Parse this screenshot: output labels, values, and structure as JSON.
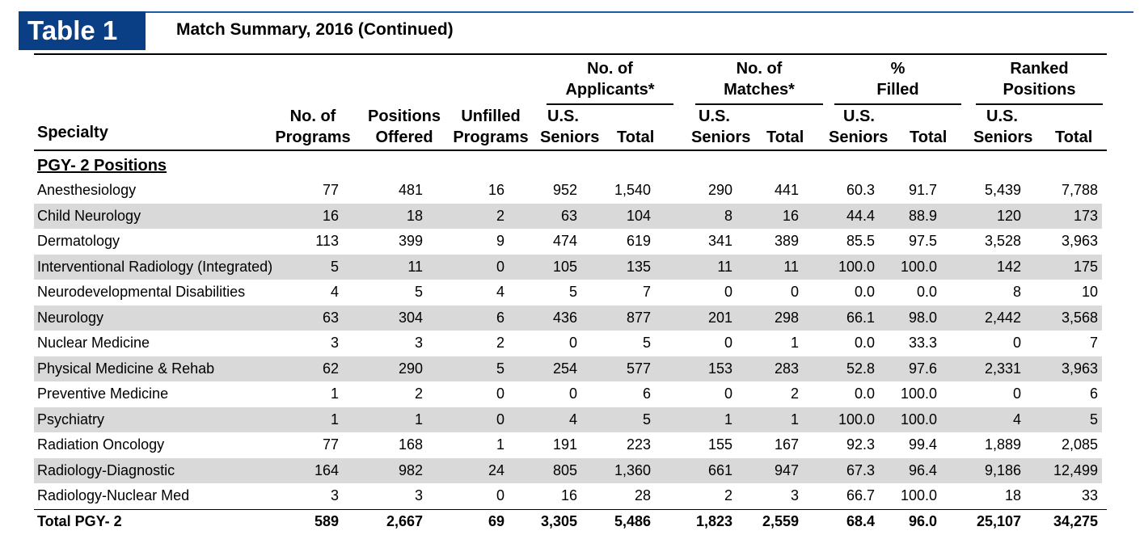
{
  "badge": "Table 1",
  "title": "Match Summary, 2016 (Continued)",
  "headers": {
    "specialty": "Specialty",
    "programs": [
      "No. of",
      "Programs"
    ],
    "positions": [
      "Positions",
      "Offered"
    ],
    "unfilled": [
      "Unfilled",
      "Programs"
    ],
    "applicants_group": [
      "No. of",
      "Applicants*"
    ],
    "matches_group": [
      "No. of",
      "Matches*"
    ],
    "filled_group": [
      "%",
      "Filled"
    ],
    "ranked_group": [
      "Ranked",
      "Positions"
    ],
    "us_seniors": [
      "U.S.",
      "Seniors"
    ],
    "total": "Total"
  },
  "section": "PGY- 2 Positions",
  "rows": [
    {
      "name": "Anesthesiology",
      "v": [
        "77",
        "481",
        "16",
        "952",
        "1,540",
        "290",
        "441",
        "60.3",
        "91.7",
        "5,439",
        "7,788"
      ]
    },
    {
      "name": "Child Neurology",
      "v": [
        "16",
        "18",
        "2",
        "63",
        "104",
        "8",
        "16",
        "44.4",
        "88.9",
        "120",
        "173"
      ]
    },
    {
      "name": "Dermatology",
      "v": [
        "113",
        "399",
        "9",
        "474",
        "619",
        "341",
        "389",
        "85.5",
        "97.5",
        "3,528",
        "3,963"
      ]
    },
    {
      "name": "Interventional Radiology (Integrated)",
      "v": [
        "5",
        "11",
        "0",
        "105",
        "135",
        "11",
        "11",
        "100.0",
        "100.0",
        "142",
        "175"
      ]
    },
    {
      "name": "Neurodevelopmental Disabilities",
      "v": [
        "4",
        "5",
        "4",
        "5",
        "7",
        "0",
        "0",
        "0.0",
        "0.0",
        "8",
        "10"
      ]
    },
    {
      "name": "Neurology",
      "v": [
        "63",
        "304",
        "6",
        "436",
        "877",
        "201",
        "298",
        "66.1",
        "98.0",
        "2,442",
        "3,568"
      ]
    },
    {
      "name": "Nuclear Medicine",
      "v": [
        "3",
        "3",
        "2",
        "0",
        "5",
        "0",
        "1",
        "0.0",
        "33.3",
        "0",
        "7"
      ]
    },
    {
      "name": "Physical Medicine & Rehab",
      "v": [
        "62",
        "290",
        "5",
        "254",
        "577",
        "153",
        "283",
        "52.8",
        "97.6",
        "2,331",
        "3,963"
      ]
    },
    {
      "name": "Preventive Medicine",
      "v": [
        "1",
        "2",
        "0",
        "0",
        "6",
        "0",
        "2",
        "0.0",
        "100.0",
        "0",
        "6"
      ]
    },
    {
      "name": "Psychiatry",
      "v": [
        "1",
        "1",
        "0",
        "4",
        "5",
        "1",
        "1",
        "100.0",
        "100.0",
        "4",
        "5"
      ]
    },
    {
      "name": "Radiation Oncology",
      "v": [
        "77",
        "168",
        "1",
        "191",
        "223",
        "155",
        "167",
        "92.3",
        "99.4",
        "1,889",
        "2,085"
      ]
    },
    {
      "name": "Radiology-Diagnostic",
      "v": [
        "164",
        "982",
        "24",
        "805",
        "1,360",
        "661",
        "947",
        "67.3",
        "96.4",
        "9,186",
        "12,499"
      ]
    },
    {
      "name": "Radiology-Nuclear Med",
      "v": [
        "3",
        "3",
        "0",
        "16",
        "28",
        "2",
        "3",
        "66.7",
        "100.0",
        "18",
        "33"
      ]
    }
  ],
  "total": {
    "name": "Total PGY- 2",
    "v": [
      "589",
      "2,667",
      "69",
      "3,305",
      "5,486",
      "1,823",
      "2,559",
      "68.4",
      "96.0",
      "25,107",
      "34,275"
    ]
  }
}
